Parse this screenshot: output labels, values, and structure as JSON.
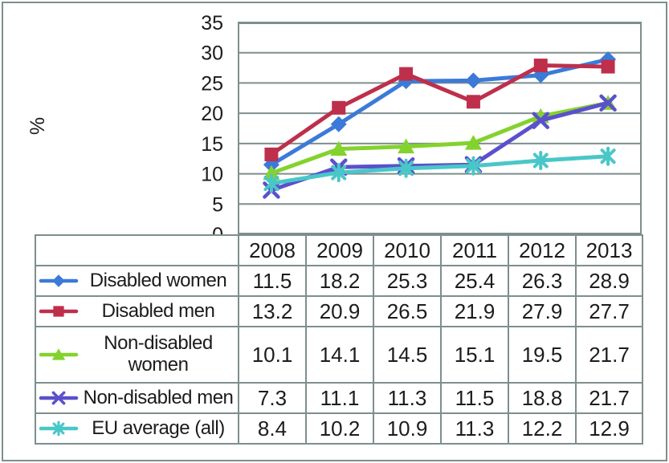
{
  "chart_data": {
    "type": "line",
    "title": "",
    "ylabel": "%",
    "xlabel": "",
    "categories": [
      "2008",
      "2009",
      "2010",
      "2011",
      "2012",
      "2013"
    ],
    "series": [
      {
        "name": "Disabled women",
        "marker": "diamond",
        "color": "#3b7ad8",
        "values": [
          11.5,
          18.2,
          25.3,
          25.4,
          26.3,
          28.9
        ]
      },
      {
        "name": "Disabled men",
        "marker": "square",
        "color": "#be2f4b",
        "values": [
          13.2,
          20.9,
          26.5,
          21.9,
          27.9,
          27.7
        ]
      },
      {
        "name": "Non-disabled women",
        "marker": "triangle",
        "color": "#83d22d",
        "values": [
          10.1,
          14.1,
          14.5,
          15.1,
          19.5,
          21.7
        ]
      },
      {
        "name": "Non-disabled men",
        "marker": "x",
        "color": "#5b50cc",
        "values": [
          7.3,
          11.1,
          11.3,
          11.5,
          18.8,
          21.7
        ]
      },
      {
        "name": "EU average (all)",
        "marker": "star",
        "color": "#49c7c8",
        "values": [
          8.4,
          10.2,
          10.9,
          11.3,
          12.2,
          12.9
        ]
      }
    ],
    "ylim": [
      0,
      35
    ],
    "ytick_step": 5,
    "yticks": [
      "0",
      "5",
      "10",
      "15",
      "20",
      "25",
      "30",
      "35"
    ],
    "grid": "horizontal",
    "legend_position": "table-left",
    "axis_color": "#7e8e8e",
    "text_color": "#1c1c1c"
  },
  "table": {
    "column_headers": [
      "2008",
      "2009",
      "2010",
      "2011",
      "2012",
      "2013"
    ],
    "rows": [
      {
        "label": "Disabled women",
        "values": [
          "11.5",
          "18.2",
          "25.3",
          "25.4",
          "26.3",
          "28.9"
        ]
      },
      {
        "label": "Disabled men",
        "values": [
          "13.2",
          "20.9",
          "26.5",
          "21.9",
          "27.9",
          "27.7"
        ]
      },
      {
        "label": "Non-disabled women",
        "values": [
          "10.1",
          "14.1",
          "14.5",
          "15.1",
          "19.5",
          "21.7"
        ]
      },
      {
        "label": "Non-disabled men",
        "values": [
          "7.3",
          "11.1",
          "11.3",
          "11.5",
          "18.8",
          "21.7"
        ]
      },
      {
        "label": "EU average (all)",
        "values": [
          "8.4",
          "10.2",
          "10.9",
          "11.3",
          "12.2",
          "12.9"
        ]
      }
    ]
  }
}
